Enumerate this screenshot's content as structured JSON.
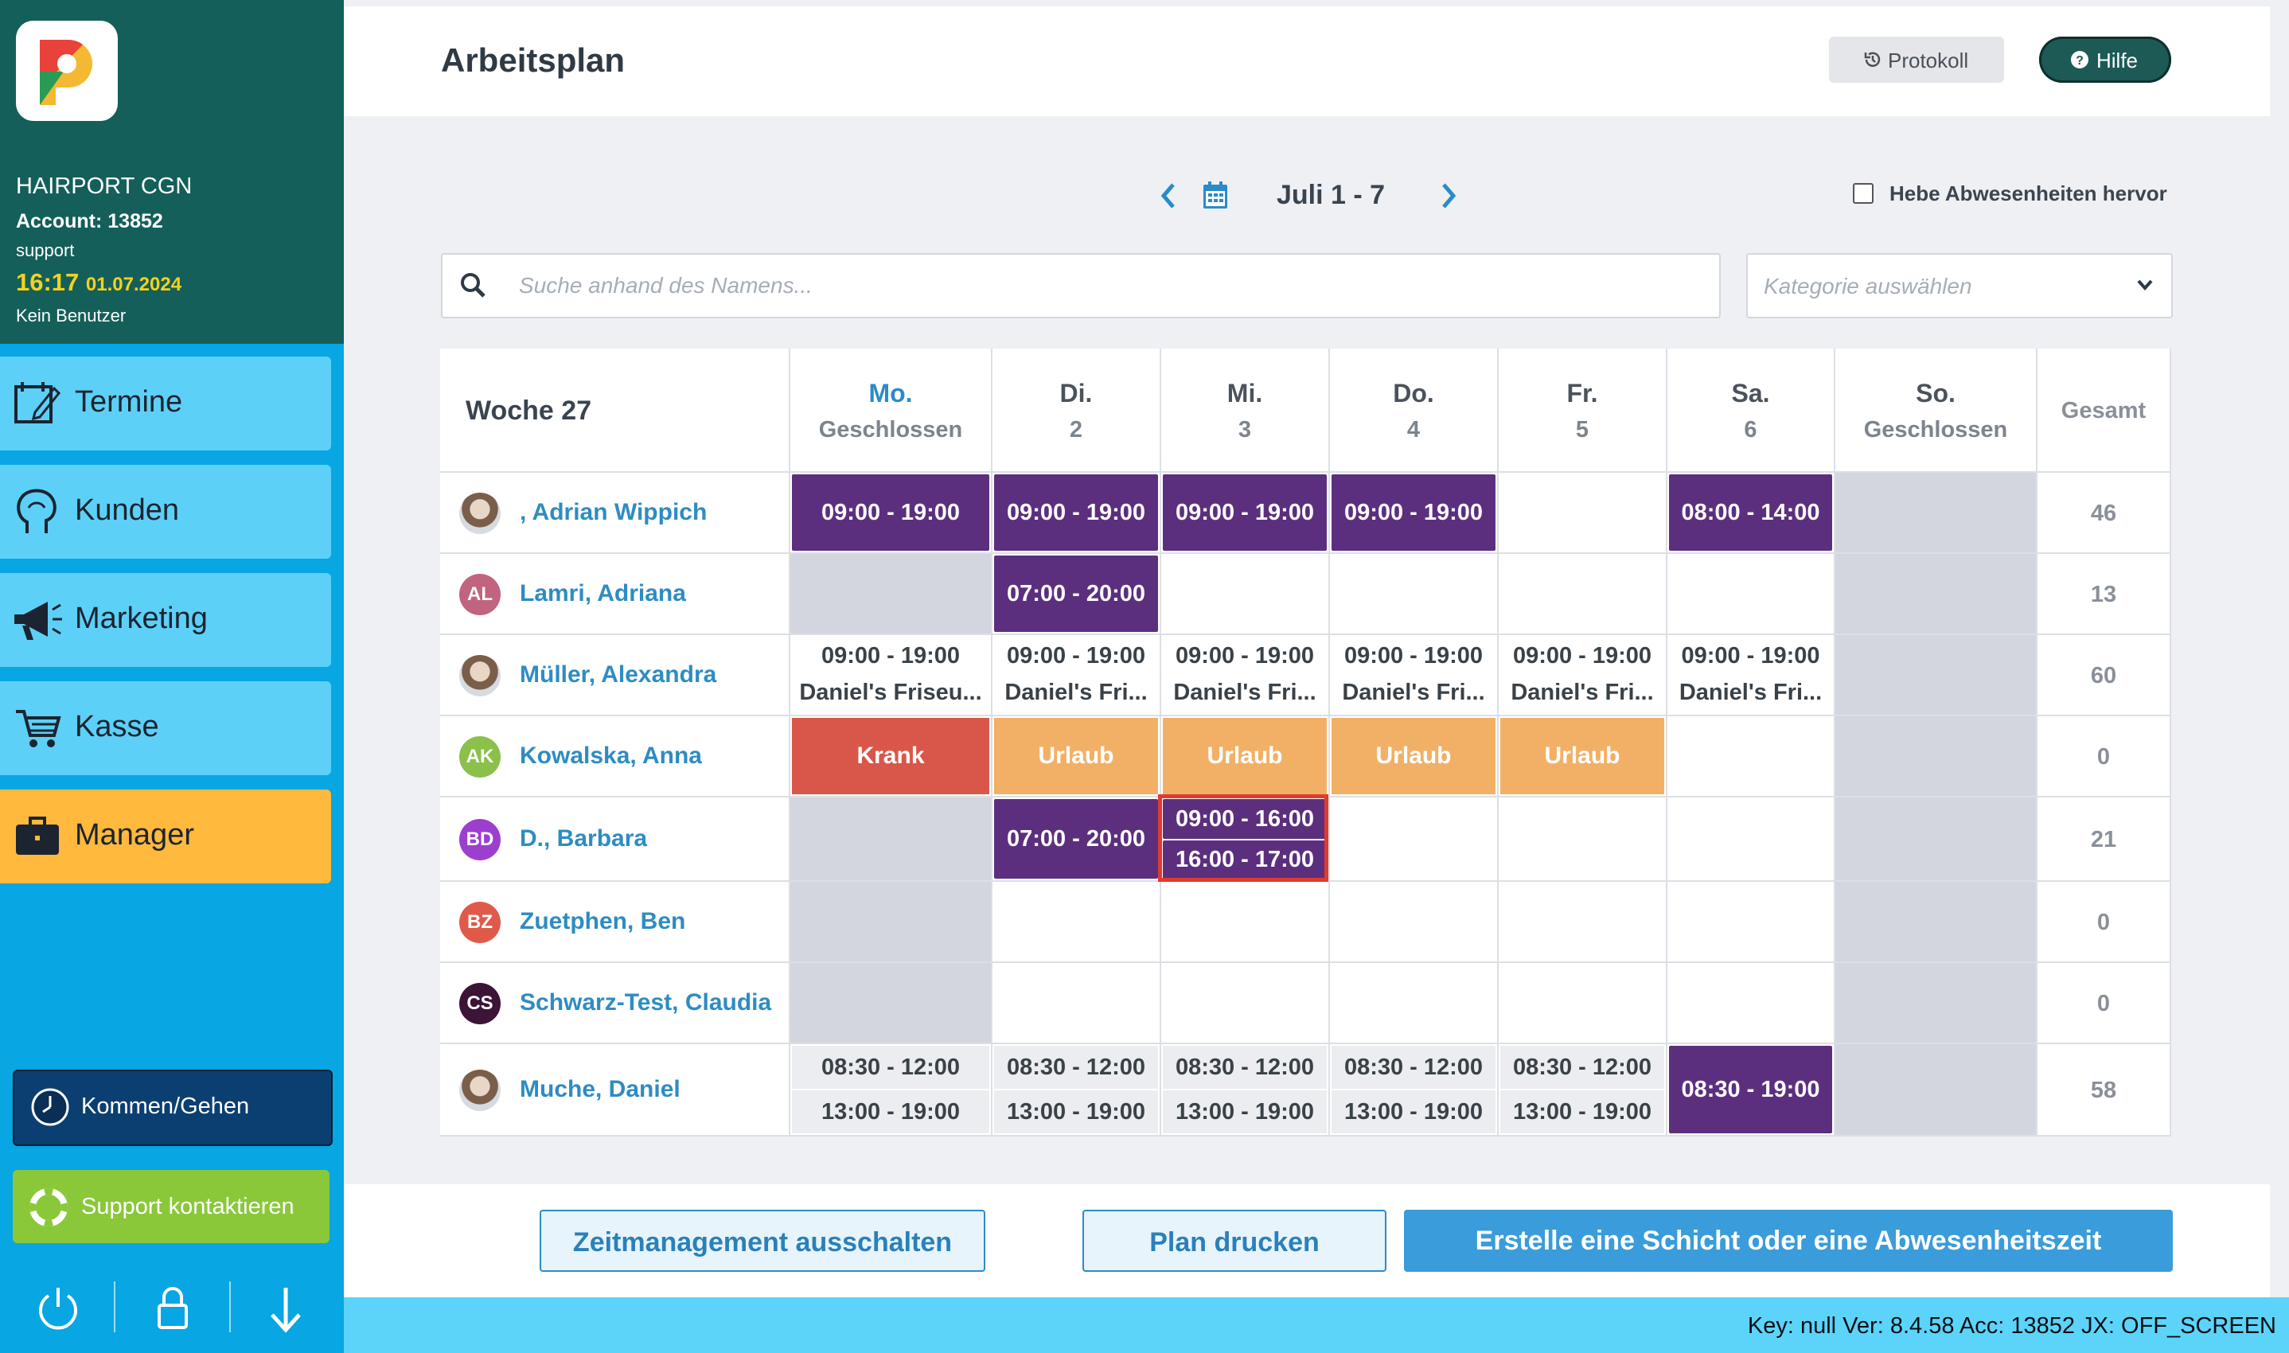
{
  "sidebar": {
    "company": "HAIRPORT CGN",
    "account": "Account: 13852",
    "user": "support",
    "time": "16:17",
    "date": "01.07.2024",
    "no_user": "Kein Benutzer",
    "nav": [
      {
        "label": "Termine",
        "icon": "calendar-edit-icon"
      },
      {
        "label": "Kunden",
        "icon": "customer-head-icon"
      },
      {
        "label": "Marketing",
        "icon": "megaphone-icon"
      },
      {
        "label": "Kasse",
        "icon": "cart-icon"
      },
      {
        "label": "Manager",
        "icon": "briefcase-icon",
        "active": true
      }
    ],
    "kommen_gehen": "Kommen/Gehen",
    "support": "Support kontaktieren",
    "colors": {
      "head": "#145f5a",
      "nav": "#5cd0f7",
      "active": "#ffb93c",
      "background": "#08a6e2"
    }
  },
  "header": {
    "title": "Arbeitsplan",
    "protokoll": "Protokoll",
    "hilfe": "Hilfe"
  },
  "week_nav": {
    "range": "Juli 1 - 7",
    "highlight_absences": "Hebe Abwesenheiten hervor",
    "highlight_checked": false
  },
  "search": {
    "placeholder": "Suche anhand des Namens...",
    "value": ""
  },
  "category": {
    "placeholder": "Kategorie auswählen"
  },
  "schedule": {
    "week_label": "Woche 27",
    "total_label": "Gesamt",
    "days": [
      {
        "name": "Mo.",
        "sub": "Geschlossen",
        "today": true
      },
      {
        "name": "Di.",
        "sub": "2"
      },
      {
        "name": "Mi.",
        "sub": "3"
      },
      {
        "name": "Do.",
        "sub": "4"
      },
      {
        "name": "Fr.",
        "sub": "5"
      },
      {
        "name": "Sa.",
        "sub": "6"
      },
      {
        "name": "So.",
        "sub": "Geschlossen"
      }
    ],
    "employees": [
      {
        "name": ", Adrian Wippich",
        "avatar": "photo",
        "total": "46",
        "cells": [
          [
            "09:00 - 19:00"
          ],
          [
            "09:00 - 19:00"
          ],
          [
            "09:00 - 19:00"
          ],
          [
            "09:00 - 19:00"
          ],
          [],
          [
            "08:00 - 14:00"
          ],
          []
        ]
      },
      {
        "name": "Lamri, Adriana",
        "avatar": "AL",
        "avatar_color": "#c0647f",
        "total": "13",
        "cells": [
          [],
          [
            "07:00 - 20:00"
          ],
          [],
          [],
          [],
          [],
          []
        ]
      },
      {
        "name": "Müller, Alexandra",
        "avatar": "photo",
        "total": "60",
        "cells": [
          [
            "09:00 - 19:00",
            "Daniel's Friseu..."
          ],
          [
            "09:00 - 19:00",
            "Daniel's Fri..."
          ],
          [
            "09:00 - 19:00",
            "Daniel's Fri..."
          ],
          [
            "09:00 - 19:00",
            "Daniel's Fri..."
          ],
          [
            "09:00 - 19:00",
            "Daniel's Fri..."
          ],
          [
            "09:00 - 19:00",
            "Daniel's Fri..."
          ],
          []
        ]
      },
      {
        "name": "Kowalska, Anna",
        "avatar": "AK",
        "avatar_color": "#8bc04a",
        "total": "0",
        "cells": [
          [
            "Krank"
          ],
          [
            "Urlaub"
          ],
          [
            "Urlaub"
          ],
          [
            "Urlaub"
          ],
          [
            "Urlaub"
          ],
          [],
          []
        ]
      },
      {
        "name": "D., Barbara",
        "avatar": "BD",
        "avatar_color": "#9c3fcf",
        "total": "21",
        "cells": [
          [],
          [
            "07:00 - 20:00"
          ],
          [
            "09:00 - 16:00",
            "16:00 - 17:00"
          ],
          [],
          [],
          [],
          []
        ]
      },
      {
        "name": "Zuetphen, Ben",
        "avatar": "BZ",
        "avatar_color": "#e05a4a",
        "total": "0",
        "cells": [
          [],
          [],
          [],
          [],
          [],
          [],
          []
        ]
      },
      {
        "name": "Schwarz-Test, Claudia",
        "avatar": "CS",
        "avatar_color": "#3c1436",
        "total": "0",
        "cells": [
          [],
          [],
          [],
          [],
          [],
          [],
          []
        ]
      },
      {
        "name": "Muche, Daniel",
        "avatar": "photo",
        "total": "58",
        "cells": [
          [
            "08:30 - 12:00",
            "13:00 - 19:00"
          ],
          [
            "08:30 - 12:00",
            "13:00 - 19:00"
          ],
          [
            "08:30 - 12:00",
            "13:00 - 19:00"
          ],
          [
            "08:30 - 12:00",
            "13:00 - 19:00"
          ],
          [
            "08:30 - 12:00",
            "13:00 - 19:00"
          ],
          [
            "08:30 - 19:00"
          ],
          []
        ]
      }
    ],
    "colors": {
      "shift": "#5c2f7e",
      "krank": "#d9574a",
      "urlaub": "#f2b066",
      "closed": "#d3d6de",
      "highlight": "#e13a2e"
    }
  },
  "actions": {
    "disable_time": "Zeitmanagement ausschalten",
    "print": "Plan drucken",
    "create": "Erstelle eine Schicht oder eine Abwesenheitszeit"
  },
  "status": "Key: null Ver: 8.4.58 Acc: 13852  JX: OFF_SCREEN"
}
